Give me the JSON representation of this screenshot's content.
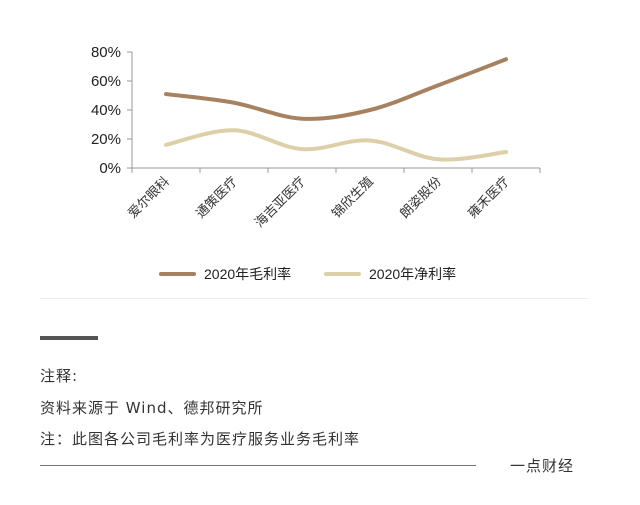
{
  "chart_data": {
    "type": "line",
    "categories": [
      "爱尔眼科",
      "通策医疗",
      "海吉亚医疗",
      "锦欣生殖",
      "朗姿股份",
      "雍禾医疗"
    ],
    "ytick_labels": [
      "80%",
      "60%",
      "40%",
      "20%",
      "0%"
    ],
    "ylim": [
      0,
      80
    ],
    "yticks": [
      0,
      20,
      40,
      60,
      80
    ],
    "grid": false,
    "legend_position": "bottom",
    "series": [
      {
        "name": "2020年毛利率",
        "color": "#a88260",
        "values": [
          51,
          45,
          34,
          40,
          57,
          75
        ]
      },
      {
        "name": "2020年净利率",
        "color": "#ddd0a9",
        "values": [
          16,
          26,
          13,
          19,
          6,
          11
        ]
      }
    ]
  },
  "notes": {
    "title": "注释:",
    "source": "资料来源于 Wind、德邦研究所",
    "text": "注：此图各公司毛利率为医疗服务业务毛利率"
  },
  "brand": "一点财经"
}
